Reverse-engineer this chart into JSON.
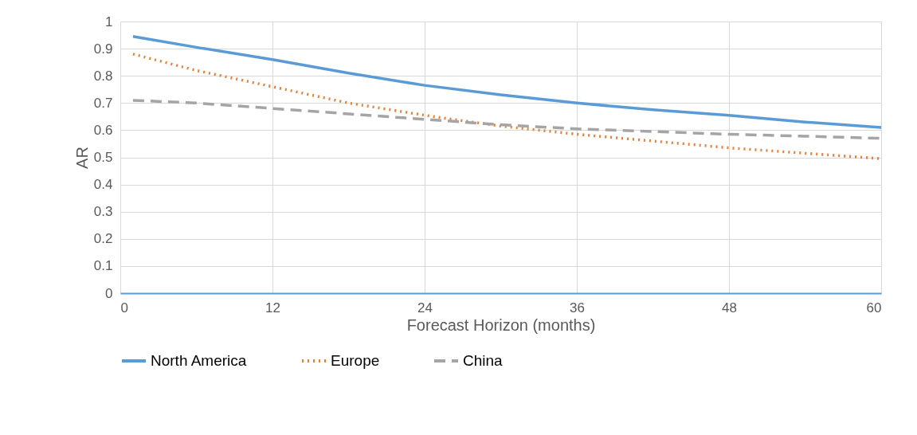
{
  "chart_data": {
    "type": "line",
    "xlabel": "Forecast Horizon (months)",
    "ylabel": "AR",
    "x": [
      1,
      6,
      12,
      18,
      24,
      30,
      36,
      42,
      48,
      54,
      60
    ],
    "series": [
      {
        "name": "North America",
        "color": "#5b9bd5",
        "line_style": "solid",
        "values": [
          0.945,
          0.905,
          0.86,
          0.81,
          0.765,
          0.73,
          0.7,
          0.675,
          0.655,
          0.63,
          0.61
        ]
      },
      {
        "name": "Europe",
        "color": "#ed7d31",
        "line_style": "dotted",
        "values": [
          0.88,
          0.82,
          0.76,
          0.7,
          0.655,
          0.615,
          0.585,
          0.56,
          0.535,
          0.515,
          0.495
        ]
      },
      {
        "name": "China",
        "color": "#a5a5a5",
        "line_style": "dashed",
        "values": [
          0.71,
          0.7,
          0.68,
          0.66,
          0.64,
          0.62,
          0.605,
          0.595,
          0.585,
          0.578,
          0.57
        ]
      }
    ],
    "xlim": [
      0,
      60
    ],
    "xticks": [
      0,
      12,
      24,
      36,
      48,
      60
    ],
    "ylim": [
      0,
      1
    ],
    "yticks": [
      0,
      0.1,
      0.2,
      0.3,
      0.4,
      0.5,
      0.6,
      0.7,
      0.8,
      0.9,
      1
    ],
    "grid": true,
    "legend": "bottom",
    "marker": "none"
  }
}
